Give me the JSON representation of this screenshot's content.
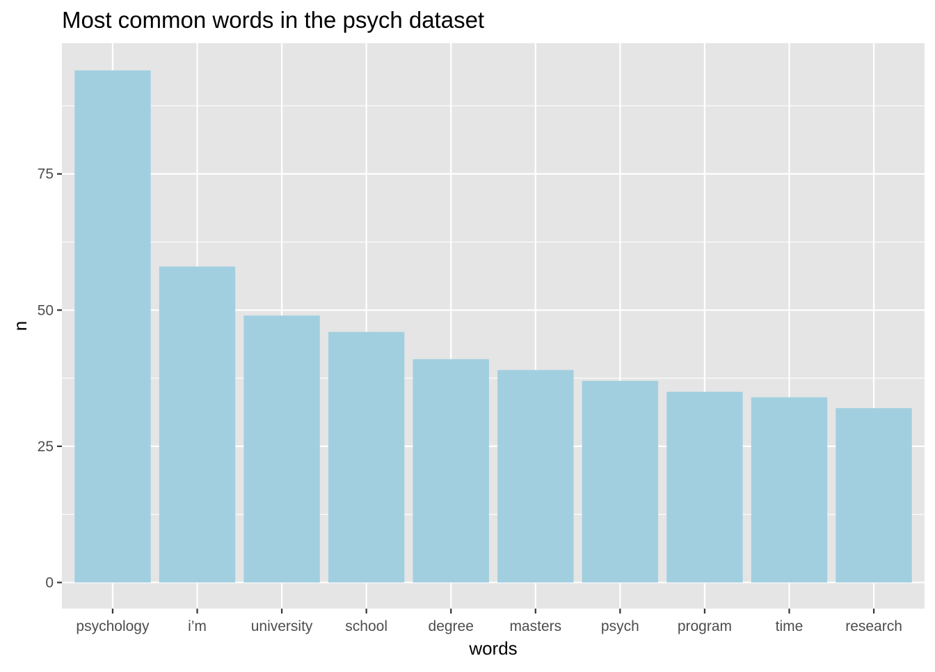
{
  "chart_data": {
    "type": "bar",
    "title": "Most common words in the psych dataset",
    "xlabel": "words",
    "ylabel": "n",
    "categories": [
      "psychology",
      "i’m",
      "university",
      "school",
      "degree",
      "masters",
      "psych",
      "program",
      "time",
      "research"
    ],
    "values": [
      94,
      58,
      49,
      46,
      41,
      39,
      37,
      35,
      34,
      32
    ],
    "ylim": [
      0,
      100
    ],
    "yticks": [
      0,
      25,
      50,
      75
    ],
    "ytick_labels": [
      "0",
      "25",
      "50",
      "75"
    ],
    "grid": true,
    "legend": "none",
    "colors": {
      "bar": "#a1cfe0",
      "panel": "#e5e5e5",
      "grid": "#ffffff",
      "tick_text": "#4d4d4d",
      "tick_mark": "#333333"
    }
  }
}
